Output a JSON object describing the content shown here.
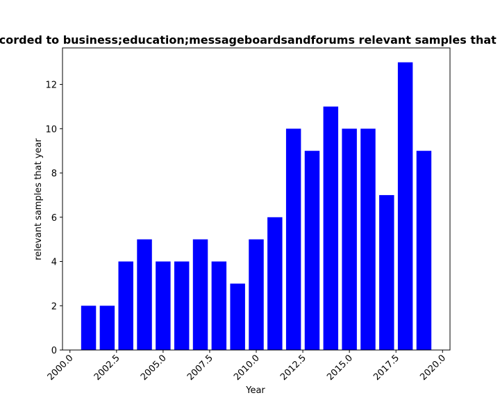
{
  "chart_data": {
    "type": "bar",
    "title": "Recorded to business;education;messageboardsandforums relevant samples that year",
    "xlabel": "Year",
    "ylabel": "relevant samples that year",
    "x": [
      2001,
      2002,
      2003,
      2004,
      2005,
      2006,
      2007,
      2008,
      2009,
      2010,
      2011,
      2012,
      2013,
      2014,
      2015,
      2016,
      2017,
      2018,
      2019
    ],
    "values": [
      2,
      2,
      4,
      5,
      4,
      4,
      5,
      4,
      3,
      5,
      6,
      10,
      9,
      11,
      10,
      10,
      7,
      13,
      9
    ],
    "xlim": [
      1999.6,
      2020.4
    ],
    "ylim": [
      0,
      13.65
    ],
    "xticks": [
      "2000.0",
      "2002.5",
      "2005.0",
      "2007.5",
      "2010.0",
      "2012.5",
      "2015.0",
      "2017.5",
      "2020.0"
    ],
    "yticks": [
      "0",
      "2",
      "4",
      "6",
      "8",
      "10",
      "12"
    ],
    "bar_color": "#0000ff",
    "grid": false,
    "legend": "none"
  }
}
